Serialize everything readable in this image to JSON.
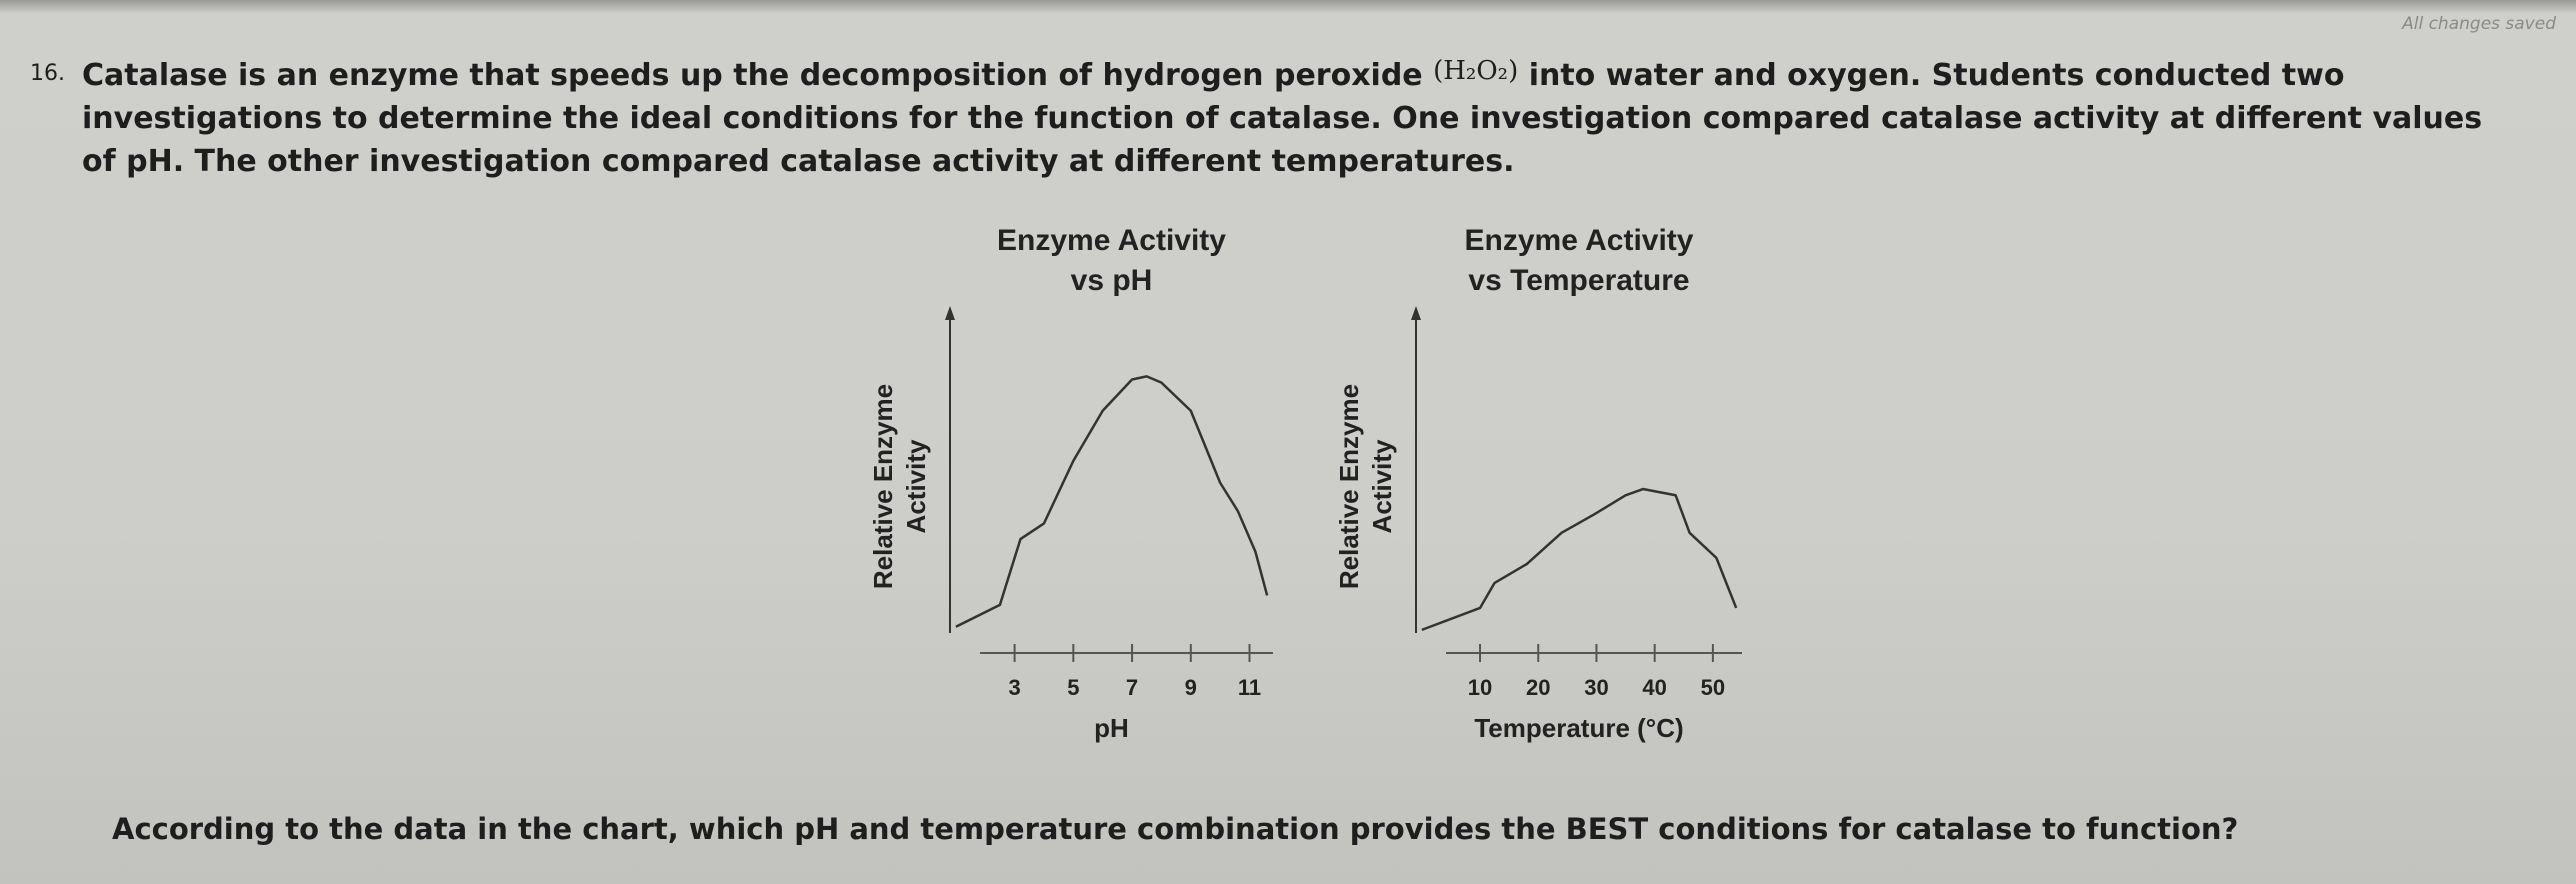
{
  "status": "All changes saved",
  "question": {
    "number": "16.",
    "text_before": "Catalase is an enzyme that speeds up the decomposition of hydrogen peroxide",
    "formula": "(H₂O₂)",
    "text_after": "into water and oxygen. Students conducted two investigations to determine the ideal conditions for the function of catalase. One investigation compared catalase activity at different values of pH. The other investigation compared catalase activity at different temperatures."
  },
  "chart_data": [
    {
      "type": "line",
      "title": [
        "Enzyme Activity",
        "vs pH"
      ],
      "xlabel": "pH",
      "ylabel": [
        "Relative Enzyme",
        "Activity"
      ],
      "xlim": [
        0.8,
        11.8
      ],
      "xticks": [
        3,
        5,
        7,
        9,
        11
      ],
      "ylim": [
        0,
        100
      ],
      "series": [
        {
          "color": "#333333",
          "x": [
            1,
            2.5,
            3,
            3.2,
            4,
            5,
            6,
            7,
            7.5,
            8,
            9,
            10,
            10.6,
            11.2,
            11.6
          ],
          "values": [
            2,
            9,
            24,
            30,
            35,
            55,
            71,
            81,
            82,
            80,
            71,
            48,
            39,
            26,
            12
          ]
        }
      ]
    },
    {
      "type": "line",
      "title": [
        "Enzyme Activity",
        "vs Temperature"
      ],
      "xlabel": "Temperature (°C)",
      "ylabel": [
        "Relative Enzyme",
        "Activity"
      ],
      "xlim": [
        -1,
        55
      ],
      "xticks": [
        10,
        20,
        30,
        40,
        50
      ],
      "ylim": [
        0,
        100
      ],
      "series": [
        {
          "color": "#333333",
          "x": [
            0,
            10,
            12.5,
            18,
            24,
            29.7,
            35,
            38,
            43.6,
            46,
            50.6,
            54
          ],
          "values": [
            1,
            8,
            16,
            22,
            32,
            38,
            44,
            46,
            44,
            32,
            24,
            8
          ]
        }
      ]
    }
  ],
  "prompt": "According to the data in the chart, which pH and temperature combination provides the BEST conditions for catalase to function?"
}
